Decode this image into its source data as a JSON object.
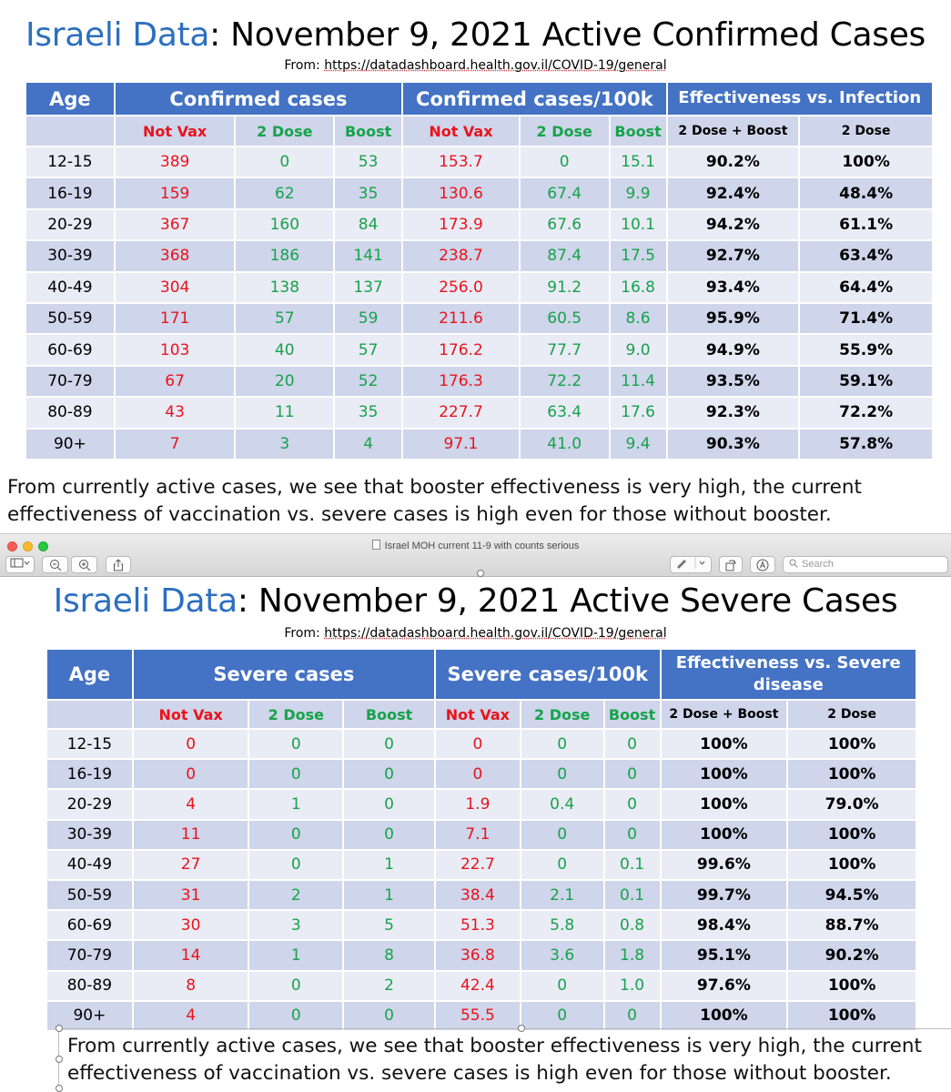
{
  "slide1": {
    "title_blue": "Israeli Data",
    "title_rest": ": November 9, 2021 Active Confirmed Cases",
    "source_prefix": "From: ",
    "source_url": "https://datadashboard.health.gov.il/COVID-19/general",
    "header": {
      "age": "Age",
      "cases": "Confirmed cases",
      "per100k": "Confirmed cases/100k",
      "effectiveness": "Effectiveness vs. Infection"
    },
    "subheader": [
      "Not Vax",
      "2 Dose",
      "Boost",
      "Not Vax",
      "2 Dose",
      "Boost",
      "2 Dose + Boost",
      "2 Dose"
    ],
    "rows": [
      [
        "12-15",
        "389",
        "0",
        "53",
        "153.7",
        "0",
        "15.1",
        "90.2%",
        "100%"
      ],
      [
        "16-19",
        "159",
        "62",
        "35",
        "130.6",
        "67.4",
        "9.9",
        "92.4%",
        "48.4%"
      ],
      [
        "20-29",
        "367",
        "160",
        "84",
        "173.9",
        "67.6",
        "10.1",
        "94.2%",
        "61.1%"
      ],
      [
        "30-39",
        "368",
        "186",
        "141",
        "238.7",
        "87.4",
        "17.5",
        "92.7%",
        "63.4%"
      ],
      [
        "40-49",
        "304",
        "138",
        "137",
        "256.0",
        "91.2",
        "16.8",
        "93.4%",
        "64.4%"
      ],
      [
        "50-59",
        "171",
        "57",
        "59",
        "211.6",
        "60.5",
        "8.6",
        "95.9%",
        "71.4%"
      ],
      [
        "60-69",
        "103",
        "40",
        "57",
        "176.2",
        "77.7",
        "9.0",
        "94.9%",
        "55.9%"
      ],
      [
        "70-79",
        "67",
        "20",
        "52",
        "176.3",
        "72.2",
        "11.4",
        "93.5%",
        "59.1%"
      ],
      [
        "80-89",
        "43",
        "11",
        "35",
        "227.7",
        "63.4",
        "17.6",
        "92.3%",
        "72.2%"
      ],
      [
        "90+",
        "7",
        "3",
        "4",
        "97.1",
        "41.0",
        "9.4",
        "90.3%",
        "57.8%"
      ]
    ],
    "caption_line1": "From currently active cases, we see that booster effectiveness is very high, the current",
    "caption_line2": "effectiveness of vaccination vs. severe cases is high even for those without booster."
  },
  "window": {
    "title": "Israel MOH current 11-9 with counts serious",
    "search_placeholder": "Search",
    "toolbar_icons": [
      "sidebar-icon",
      "zoom-out-icon",
      "zoom-in-icon",
      "share-icon",
      "markup-pen-icon",
      "rotate-icon",
      "annotate-icon",
      "search-icon"
    ]
  },
  "slide2": {
    "title_blue": "Israeli Data",
    "title_rest": ": November 9, 2021 Active Severe Cases",
    "source_prefix": "From: ",
    "source_url": "https://datadashboard.health.gov.il/COVID-19/general",
    "header": {
      "age": "Age",
      "cases": "Severe cases",
      "per100k": "Severe cases/100k",
      "effectiveness": "Effectiveness vs. Severe disease"
    },
    "subheader": [
      "Not Vax",
      "2 Dose",
      "Boost",
      "Not Vax",
      "2 Dose",
      "Boost",
      "2 Dose + Boost",
      "2 Dose"
    ],
    "rows": [
      [
        "12-15",
        "0",
        "0",
        "0",
        "0",
        "0",
        "0",
        "100%",
        "100%"
      ],
      [
        "16-19",
        "0",
        "0",
        "0",
        "0",
        "0",
        "0",
        "100%",
        "100%"
      ],
      [
        "20-29",
        "4",
        "1",
        "0",
        "1.9",
        "0.4",
        "0",
        "100%",
        "79.0%"
      ],
      [
        "30-39",
        "11",
        "0",
        "0",
        "7.1",
        "0",
        "0",
        "100%",
        "100%"
      ],
      [
        "40-49",
        "27",
        "0",
        "1",
        "22.7",
        "0",
        "0.1",
        "99.6%",
        "100%"
      ],
      [
        "50-59",
        "31",
        "2",
        "1",
        "38.4",
        "2.1",
        "0.1",
        "99.7%",
        "94.5%"
      ],
      [
        "60-69",
        "30",
        "3",
        "5",
        "51.3",
        "5.8",
        "0.8",
        "98.4%",
        "88.7%"
      ],
      [
        "70-79",
        "14",
        "1",
        "8",
        "36.8",
        "3.6",
        "1.8",
        "95.1%",
        "90.2%"
      ],
      [
        "80-89",
        "8",
        "0",
        "2",
        "42.4",
        "0",
        "1.0",
        "97.6%",
        "100%"
      ],
      [
        "90+",
        "4",
        "0",
        "0",
        "55.5",
        "0",
        "0",
        "100%",
        "100%"
      ]
    ],
    "caption_line1": "From currently active cases, we see that booster effectiveness is very high, the current",
    "caption_line2": "effectiveness of vaccination vs. severe cases is high even for those without booster."
  },
  "colors": {
    "header_blue": "#4472c4",
    "title_blue": "#2c6fc0",
    "not_vax_red": "#e8141c",
    "vax_green": "#16a34a",
    "row_light": "#e9ebf5",
    "row_dark": "#cfd5ea"
  }
}
